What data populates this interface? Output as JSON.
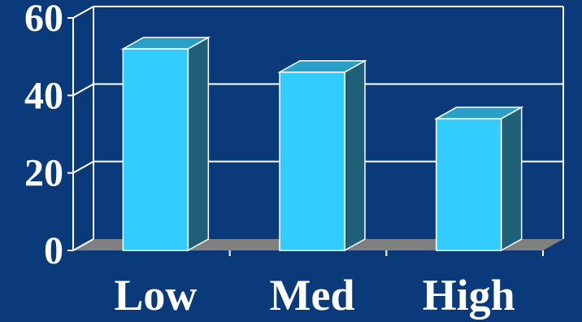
{
  "chart_data": {
    "type": "bar",
    "categories": [
      "Low",
      "Med",
      "High"
    ],
    "values": [
      52,
      46,
      34
    ],
    "ylim": [
      0,
      60
    ],
    "yticks": [
      0,
      20,
      40,
      60
    ],
    "grid": true,
    "three_d": true
  },
  "colors": {
    "background": "#0a3a7a",
    "bar_front": "#33ccff",
    "bar_top": "#2aa0c8",
    "bar_side": "#1f6078",
    "floor": "#808080",
    "grid": "#ffffff"
  }
}
